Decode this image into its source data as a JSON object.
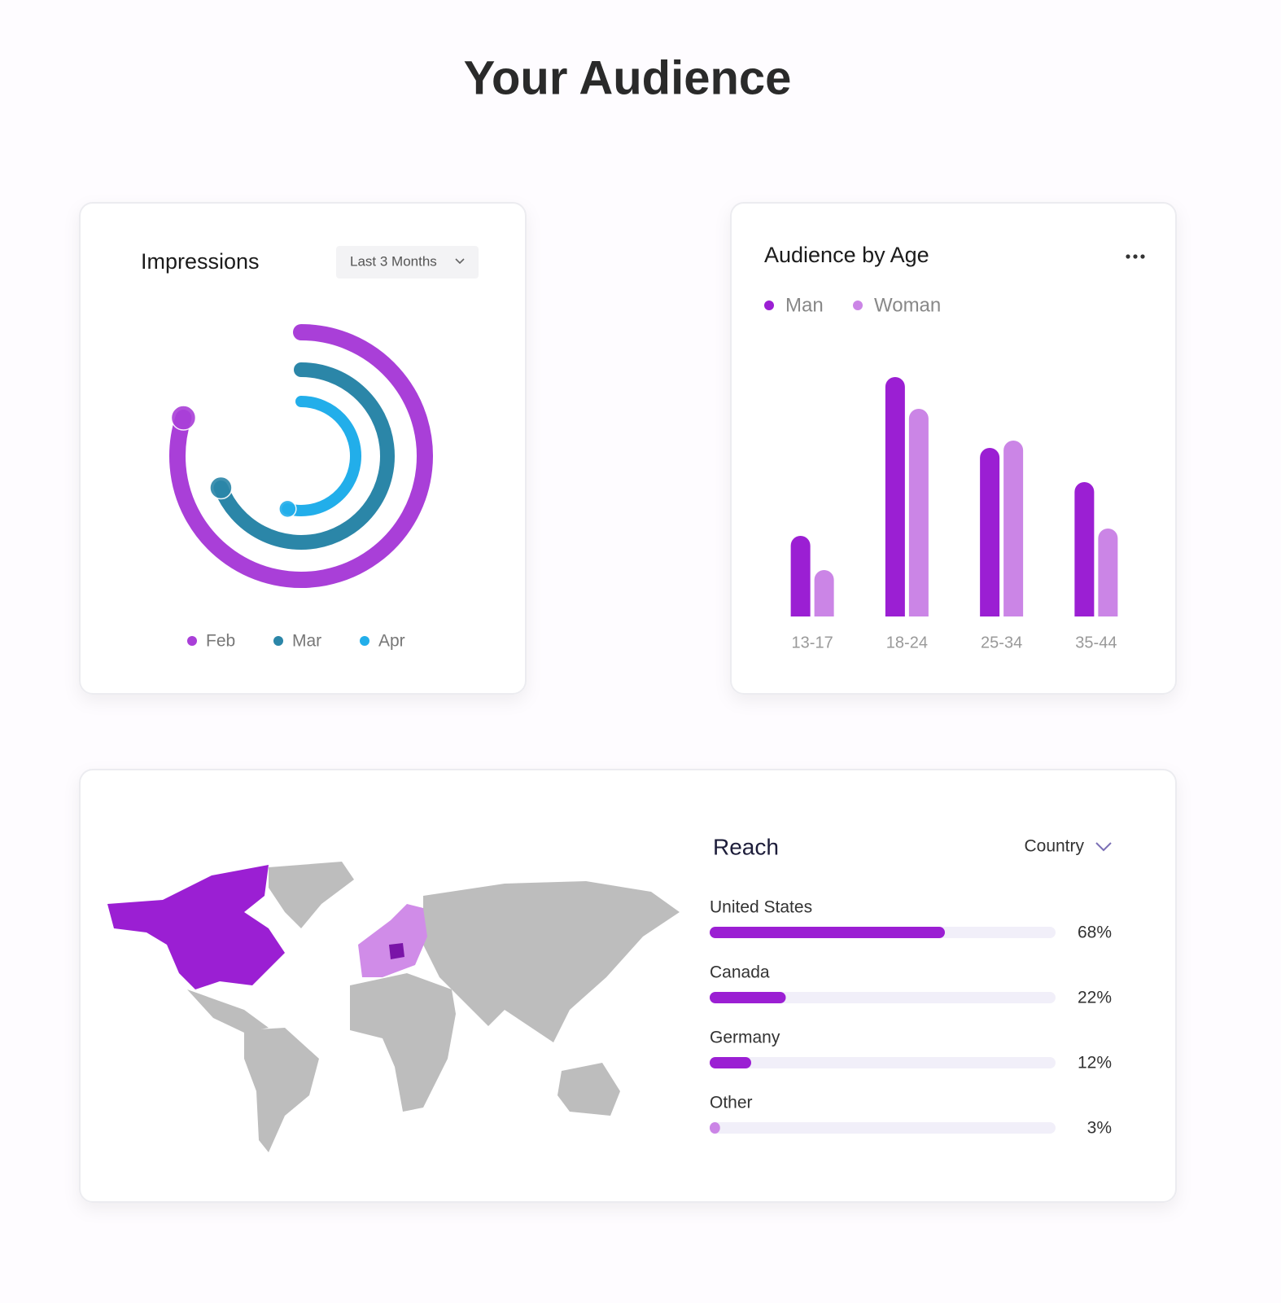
{
  "header": {
    "title": "Your Audience"
  },
  "chart_data": [
    {
      "type": "radial",
      "title": "Impressions",
      "filter": "Last 3 Months",
      "categories": [
        "Feb",
        "Mar",
        "Apr"
      ],
      "values": [
        80,
        69,
        54
      ],
      "colors": [
        "#a93fd8",
        "#2b86a8",
        "#22aeea"
      ],
      "ylim": [
        0,
        100
      ]
    },
    {
      "type": "bar",
      "title": "Audience by Age",
      "categories": [
        "13-17",
        "18-24",
        "25-34",
        "35-44"
      ],
      "series": [
        {
          "name": "Man",
          "color": "#9b1fd3",
          "values": [
            33,
            98,
            69,
            55
          ]
        },
        {
          "name": "Woman",
          "color": "#cb85e6",
          "values": [
            19,
            85,
            72,
            36
          ]
        }
      ],
      "ylim": [
        0,
        100
      ]
    },
    {
      "type": "hbar",
      "title": "Reach",
      "filter": "Country",
      "categories": [
        "United States",
        "Canada",
        "Germany",
        "Other"
      ],
      "values": [
        68,
        22,
        12,
        3
      ],
      "value_labels": [
        "68%",
        "22%",
        "12%",
        "3%"
      ],
      "colors": [
        "#9b1fd3",
        "#9b1fd3",
        "#9b1fd3",
        "#cb85e6"
      ],
      "xlim": [
        0,
        100
      ]
    }
  ]
}
